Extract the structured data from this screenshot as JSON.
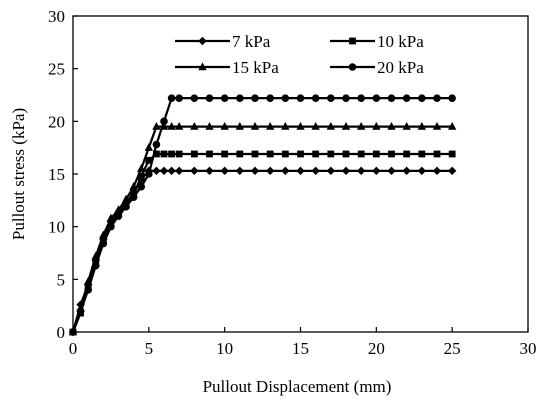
{
  "chart_data": {
    "type": "line",
    "title": "",
    "xlabel": "Pullout Displacement (mm)",
    "ylabel": "Pullout stress (kPa)",
    "xlim": [
      0,
      30
    ],
    "ylim": [
      0,
      30
    ],
    "xticks": [
      0,
      5,
      10,
      15,
      20,
      25,
      30
    ],
    "yticks": [
      0,
      5,
      10,
      15,
      20,
      25,
      30
    ],
    "grid": false,
    "legend": "top, inside plot, two columns",
    "series": [
      {
        "name": "7 kPa",
        "marker": "diamond",
        "points": [
          [
            0,
            0
          ],
          [
            0.5,
            2.6
          ],
          [
            1,
            4.5
          ],
          [
            1.5,
            6.8
          ],
          [
            2,
            8.8
          ],
          [
            2.5,
            10.5
          ],
          [
            3,
            11.3
          ],
          [
            3.5,
            12.2
          ],
          [
            4,
            13.3
          ],
          [
            4.5,
            14.5
          ],
          [
            5,
            15.3
          ],
          [
            5.5,
            15.3
          ],
          [
            6,
            15.3
          ],
          [
            6.5,
            15.3
          ],
          [
            7,
            15.3
          ],
          [
            8,
            15.3
          ],
          [
            9,
            15.3
          ],
          [
            10,
            15.3
          ],
          [
            11,
            15.3
          ],
          [
            12,
            15.3
          ],
          [
            13,
            15.3
          ],
          [
            14,
            15.3
          ],
          [
            15,
            15.3
          ],
          [
            16,
            15.3
          ],
          [
            17,
            15.3
          ],
          [
            18,
            15.3
          ],
          [
            19,
            15.3
          ],
          [
            20,
            15.3
          ],
          [
            21,
            15.3
          ],
          [
            22,
            15.3
          ],
          [
            23,
            15.3
          ],
          [
            24,
            15.3
          ],
          [
            25,
            15.3
          ]
        ]
      },
      {
        "name": "10 kPa",
        "marker": "square",
        "points": [
          [
            0,
            0
          ],
          [
            0.5,
            1.8
          ],
          [
            1,
            4.2
          ],
          [
            1.5,
            6.5
          ],
          [
            2,
            8.6
          ],
          [
            2.5,
            10.2
          ],
          [
            3,
            11.2
          ],
          [
            3.5,
            12.0
          ],
          [
            4,
            13.0
          ],
          [
            4.5,
            14.8
          ],
          [
            5,
            16.3
          ],
          [
            5.5,
            16.9
          ],
          [
            6,
            16.9
          ],
          [
            6.5,
            16.9
          ],
          [
            7,
            16.9
          ],
          [
            8,
            16.9
          ],
          [
            9,
            16.9
          ],
          [
            10,
            16.9
          ],
          [
            11,
            16.9
          ],
          [
            12,
            16.9
          ],
          [
            13,
            16.9
          ],
          [
            14,
            16.9
          ],
          [
            15,
            16.9
          ],
          [
            16,
            16.9
          ],
          [
            17,
            16.9
          ],
          [
            18,
            16.9
          ],
          [
            19,
            16.9
          ],
          [
            20,
            16.9
          ],
          [
            21,
            16.9
          ],
          [
            22,
            16.9
          ],
          [
            23,
            16.9
          ],
          [
            24,
            16.9
          ],
          [
            25,
            16.9
          ]
        ]
      },
      {
        "name": "15 kPa",
        "marker": "triangle",
        "points": [
          [
            0,
            0
          ],
          [
            0.5,
            2.2
          ],
          [
            1,
            4.8
          ],
          [
            1.5,
            7.2
          ],
          [
            2,
            9.2
          ],
          [
            2.5,
            10.8
          ],
          [
            3,
            11.6
          ],
          [
            3.5,
            12.6
          ],
          [
            4,
            13.8
          ],
          [
            4.5,
            15.5
          ],
          [
            5,
            17.5
          ],
          [
            5.5,
            19.5
          ],
          [
            6,
            19.5
          ],
          [
            6.5,
            19.5
          ],
          [
            7,
            19.5
          ],
          [
            8,
            19.5
          ],
          [
            9,
            19.5
          ],
          [
            10,
            19.5
          ],
          [
            11,
            19.5
          ],
          [
            12,
            19.5
          ],
          [
            13,
            19.5
          ],
          [
            14,
            19.5
          ],
          [
            15,
            19.5
          ],
          [
            16,
            19.5
          ],
          [
            17,
            19.5
          ],
          [
            18,
            19.5
          ],
          [
            19,
            19.5
          ],
          [
            20,
            19.5
          ],
          [
            21,
            19.5
          ],
          [
            22,
            19.5
          ],
          [
            23,
            19.5
          ],
          [
            24,
            19.5
          ],
          [
            25,
            19.5
          ]
        ]
      },
      {
        "name": "20 kPa",
        "marker": "circle",
        "points": [
          [
            0,
            0
          ],
          [
            0.5,
            2.0
          ],
          [
            1,
            4.0
          ],
          [
            1.5,
            6.3
          ],
          [
            2,
            8.4
          ],
          [
            2.5,
            10.0
          ],
          [
            3,
            11.0
          ],
          [
            3.5,
            11.9
          ],
          [
            4,
            12.8
          ],
          [
            4.5,
            13.8
          ],
          [
            5,
            15.0
          ],
          [
            5.5,
            17.8
          ],
          [
            6,
            20.0
          ],
          [
            6.5,
            22.2
          ],
          [
            7,
            22.2
          ],
          [
            8,
            22.2
          ],
          [
            9,
            22.2
          ],
          [
            10,
            22.2
          ],
          [
            11,
            22.2
          ],
          [
            12,
            22.2
          ],
          [
            13,
            22.2
          ],
          [
            14,
            22.2
          ],
          [
            15,
            22.2
          ],
          [
            16,
            22.2
          ],
          [
            17,
            22.2
          ],
          [
            18,
            22.2
          ],
          [
            19,
            22.2
          ],
          [
            20,
            22.2
          ],
          [
            21,
            22.2
          ],
          [
            22,
            22.2
          ],
          [
            23,
            22.2
          ],
          [
            24,
            22.2
          ],
          [
            25,
            22.2
          ]
        ]
      }
    ]
  }
}
